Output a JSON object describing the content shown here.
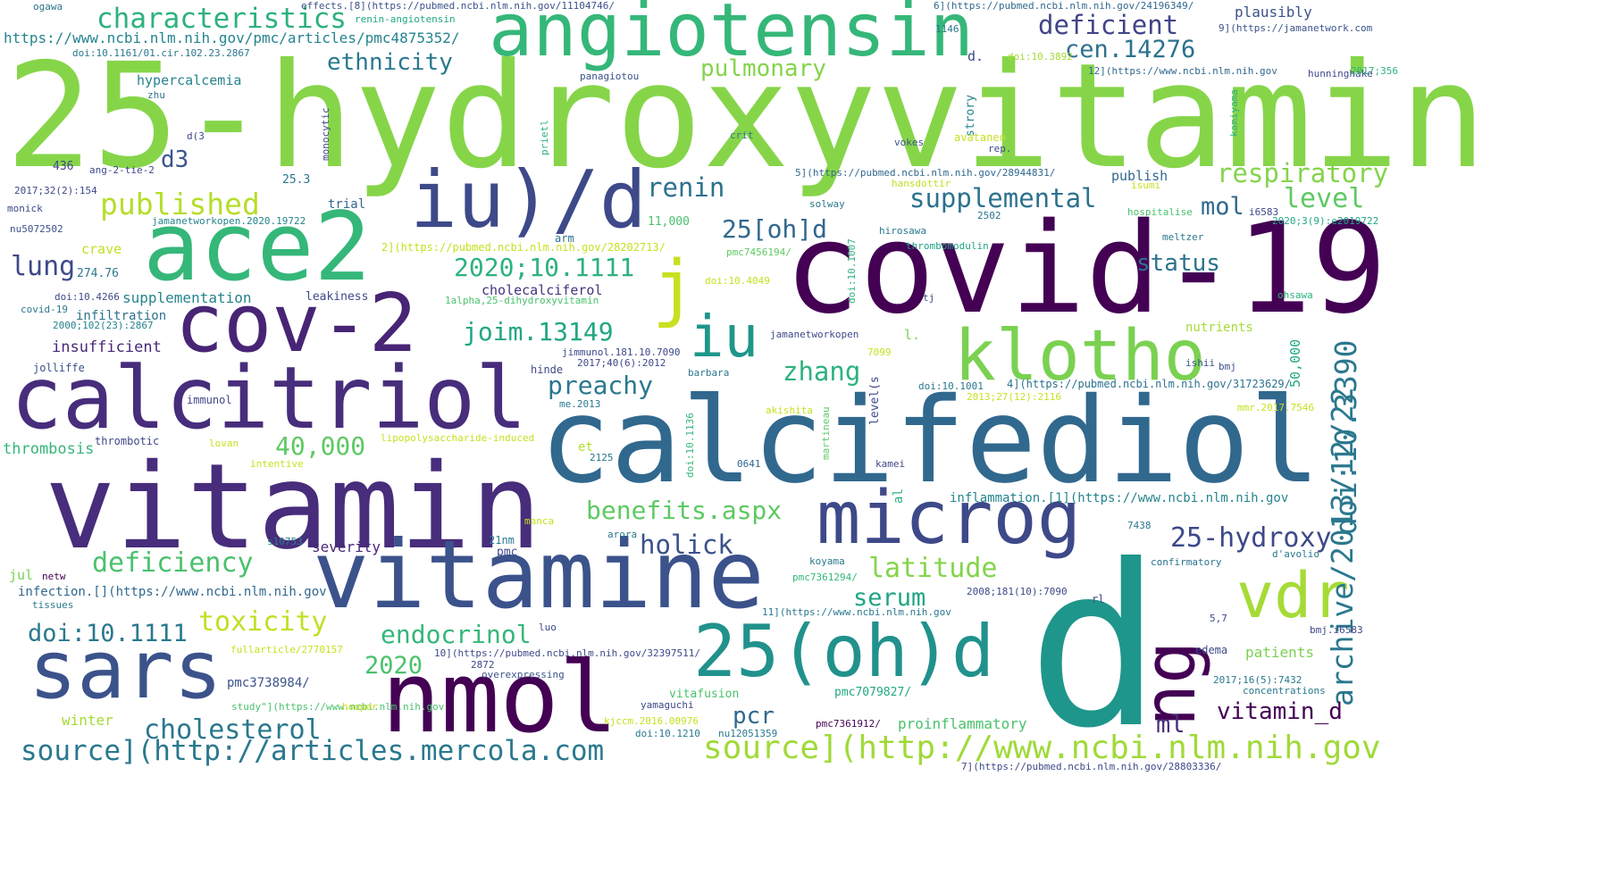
{
  "words": [
    {
      "text": "25-hydroxyvitamin",
      "color": "#86d549"
    },
    {
      "text": "d",
      "color": "#1f968b"
    },
    {
      "text": "covid-19",
      "color": "#440154"
    },
    {
      "text": "calcifediol",
      "color": "#31688e"
    },
    {
      "text": "vitamin",
      "color": "#472d7b"
    },
    {
      "text": "vitamine",
      "color": "#3b528b"
    },
    {
      "text": "angiotensin",
      "color": "#35b779"
    },
    {
      "text": "calcitriol",
      "color": "#472d7b"
    },
    {
      "text": "ace2",
      "color": "#35b779"
    },
    {
      "text": "nmol",
      "color": "#440154"
    },
    {
      "text": "sars",
      "color": "#3b528b"
    },
    {
      "text": "cov-2",
      "color": "#482475"
    },
    {
      "text": "iu)/d",
      "color": "#3e4989"
    },
    {
      "text": "microg",
      "color": "#3e4989"
    },
    {
      "text": "25(oh)d",
      "color": "#21918c"
    },
    {
      "text": "klotho",
      "color": "#7ad151"
    },
    {
      "text": "ng",
      "color": "#440154"
    },
    {
      "text": "vdr",
      "color": "#a5db36"
    },
    {
      "text": "iu",
      "color": "#1f968b"
    },
    {
      "text": "j",
      "color": "#c8e020"
    },
    {
      "text": "source](http://www.ncbi.nlm.nih.gov",
      "color": "#a0da39"
    },
    {
      "text": "source](http://articles.mercola.com",
      "color": "#2a788e"
    },
    {
      "text": "archive/2013/12/22",
      "color": "#2a788e"
    },
    {
      "text": "doi:10.3390",
      "color": "#2a788e"
    },
    {
      "text": "characteristics",
      "color": "#2db27d"
    },
    {
      "text": "https://www.ncbi.nlm.nih.gov/pmc/articles/pmc4875352/",
      "color": "#25848e"
    },
    {
      "text": "doi:10.1161/01.cir.102.23.2867",
      "color": "#2a788e"
    },
    {
      "text": "deficient",
      "color": "#414487"
    },
    {
      "text": "cen.14276",
      "color": "#2c728e"
    },
    {
      "text": "ethnicity",
      "color": "#2a788e"
    },
    {
      "text": "pulmonary",
      "color": "#84d44b"
    },
    {
      "text": "respiratory",
      "color": "#84d44b"
    },
    {
      "text": "published",
      "color": "#b5de2b"
    },
    {
      "text": "renin",
      "color": "#2c728e"
    },
    {
      "text": "supplemental",
      "color": "#2c728e"
    },
    {
      "text": "level",
      "color": "#5ec962"
    },
    {
      "text": "mol",
      "color": "#31688e"
    },
    {
      "text": "25[oh]d",
      "color": "#31688e"
    },
    {
      "text": "d3",
      "color": "#39568c"
    },
    {
      "text": "lung",
      "color": "#3e4989"
    },
    {
      "text": "2020;10.1111",
      "color": "#2db27d"
    },
    {
      "text": "status",
      "color": "#2c728e"
    },
    {
      "text": "joim.13149",
      "color": "#21a685"
    },
    {
      "text": "zhang",
      "color": "#2db27d"
    },
    {
      "text": "preachy",
      "color": "#2a788e"
    },
    {
      "text": "40,000",
      "color": "#5ec962"
    },
    {
      "text": "benefits.aspx",
      "color": "#5ec962"
    },
    {
      "text": "deficiency",
      "color": "#4ac16d"
    },
    {
      "text": "holick",
      "color": "#3b528b"
    },
    {
      "text": "25-hydroxy",
      "color": "#3e4989"
    },
    {
      "text": "latitude",
      "color": "#84d44b"
    },
    {
      "text": "serum",
      "color": "#20a486"
    },
    {
      "text": "toxicity",
      "color": "#c2df23"
    },
    {
      "text": "doi:10.1111",
      "color": "#2a788e"
    },
    {
      "text": "endocrinol",
      "color": "#35b779"
    },
    {
      "text": "2020",
      "color": "#4ac16d"
    },
    {
      "text": "cholesterol",
      "color": "#2a788e"
    },
    {
      "text": "pcr",
      "color": "#31688e"
    },
    {
      "text": "vitamin_d",
      "color": "#440154"
    },
    {
      "text": "ml",
      "color": "#472d7b"
    },
    {
      "text": "hypercalcemia",
      "color": "#25848e"
    },
    {
      "text": "supplementation",
      "color": "#25848e"
    },
    {
      "text": "insufficient",
      "color": "#482878"
    },
    {
      "text": "thrombosis",
      "color": "#35b779"
    },
    {
      "text": "infiltration",
      "color": "#2c728e"
    },
    {
      "text": "cholecalciferol",
      "color": "#46337e"
    },
    {
      "text": "plausibly",
      "color": "#3b528b"
    },
    {
      "text": "publish",
      "color": "#31688e"
    },
    {
      "text": "nutrients",
      "color": "#a5db36"
    },
    {
      "text": "patients",
      "color": "#7ad151"
    },
    {
      "text": "proinflammatory",
      "color": "#4ac16d"
    },
    {
      "text": "severity",
      "color": "#482878"
    },
    {
      "text": "winter",
      "color": "#a5db36"
    },
    {
      "text": "crave",
      "color": "#c2df23"
    },
    {
      "text": "trial",
      "color": "#31688e"
    },
    {
      "text": "25.3",
      "color": "#2a788e"
    },
    {
      "text": "436",
      "color": "#3e4989"
    },
    {
      "text": "ogawa",
      "color": "#2c728e"
    },
    {
      "text": "effects.[8](https://pubmed.ncbi.nlm.nih.gov/11104746/",
      "color": "#3b528b"
    },
    {
      "text": "renin‐angiotensin",
      "color": "#22a884"
    },
    {
      "text": "6](https://pubmed.ncbi.nlm.nih.gov/24196349/",
      "color": "#31688e"
    },
    {
      "text": "9](https://jamanetwork.com",
      "color": "#3b528b"
    },
    {
      "text": "1146",
      "color": "#2a788e"
    },
    {
      "text": "d.",
      "color": "#3e4989"
    },
    {
      "text": "doi:10.3892",
      "color": "#a5db36"
    },
    {
      "text": "12](https://www.ncbi.nlm.nih.gov",
      "color": "#31688e"
    },
    {
      "text": "hunninghake",
      "color": "#3e4989"
    },
    {
      "text": "2017;356",
      "color": "#2db27d"
    },
    {
      "text": "2020;12(5):1359",
      "color": "#a5db36"
    },
    {
      "text": "panagiotou",
      "color": "#3b528b"
    },
    {
      "text": "zhu",
      "color": "#2c728e"
    },
    {
      "text": "monocytic",
      "color": "#3e4989"
    },
    {
      "text": "prietl",
      "color": "#2db27d"
    },
    {
      "text": "strory",
      "color": "#25848e"
    },
    {
      "text": "kamiyama",
      "color": "#2db27d"
    },
    {
      "text": "d(3",
      "color": "#3e4989"
    },
    {
      "text": "crit",
      "color": "#2c728e"
    },
    {
      "text": "vokes",
      "color": "#3b528b"
    },
    {
      "text": "avataneo",
      "color": "#c8e020"
    },
    {
      "text": "rep.",
      "color": "#3e4989"
    },
    {
      "text": "ang-2-tie-2",
      "color": "#3e4989"
    },
    {
      "text": "5](https://pubmed.ncbi.nlm.nih.gov/28944831/",
      "color": "#31688e"
    },
    {
      "text": "hansdottir",
      "color": "#c2df23"
    },
    {
      "text": "isumi",
      "color": "#c8e020"
    },
    {
      "text": "2017;32(2):154",
      "color": "#3e4989"
    },
    {
      "text": "monick",
      "color": "#3e4989"
    },
    {
      "text": "jamanetworkopen.2020.19722",
      "color": "#25848e"
    },
    {
      "text": "solway",
      "color": "#2a788e"
    },
    {
      "text": "11,000",
      "color": "#4ac16d"
    },
    {
      "text": "2502",
      "color": "#2c728e"
    },
    {
      "text": "hospitalise",
      "color": "#4ac16d"
    },
    {
      "text": "i6583",
      "color": "#3e4989"
    },
    {
      "text": "2020;3(9):e2019722",
      "color": "#22a884"
    },
    {
      "text": "nu5072502",
      "color": "#3b528b"
    },
    {
      "text": "arm",
      "color": "#2c728e"
    },
    {
      "text": "2](https://pubmed.ncbi.nlm.nih.gov/28202713/",
      "color": "#c8e020"
    },
    {
      "text": "hirosawa",
      "color": "#2a788e"
    },
    {
      "text": "thrombomodulin",
      "color": "#20a486"
    },
    {
      "text": "meltzer",
      "color": "#2a788e"
    },
    {
      "text": "274.76",
      "color": "#2a788e"
    },
    {
      "text": "pmc7456194/",
      "color": "#5ec962"
    },
    {
      "text": "doi:10.4049",
      "color": "#c8e020"
    },
    {
      "text": "doi:10.1007",
      "color": "#2db27d"
    },
    {
      "text": "tj",
      "color": "#3e4989"
    },
    {
      "text": "ohsawa",
      "color": "#2db27d"
    },
    {
      "text": "doi:10.4266",
      "color": "#3e4989"
    },
    {
      "text": "leakiness",
      "color": "#3e4989"
    },
    {
      "text": "1alpha,25-dihydroxyvitamin",
      "color": "#4ac16d"
    },
    {
      "text": "covid‐19",
      "color": "#2a788e"
    },
    {
      "text": "2000;102(23):2867",
      "color": "#25848e"
    },
    {
      "text": "jamanetworkopen",
      "color": "#3e4989"
    },
    {
      "text": "l.",
      "color": "#7ad151"
    },
    {
      "text": "jolliffe",
      "color": "#3b528b"
    },
    {
      "text": "jimmunol.181.10.7090",
      "color": "#3e4989"
    },
    {
      "text": "2017;40(6):2012",
      "color": "#3e4989"
    },
    {
      "text": "7099",
      "color": "#c8e020"
    },
    {
      "text": "50,000",
      "color": "#22a884"
    },
    {
      "text": "ishii",
      "color": "#3b528b"
    },
    {
      "text": "bmj",
      "color": "#3b528b"
    },
    {
      "text": "hinde",
      "color": "#3e4989"
    },
    {
      "text": "barbara",
      "color": "#2a788e"
    },
    {
      "text": "doi:10.1001",
      "color": "#2a788e"
    },
    {
      "text": "4](https://pubmed.ncbi.nlm.nih.gov/31723629/",
      "color": "#2c728e"
    },
    {
      "text": "immunol",
      "color": "#3e4989"
    },
    {
      "text": "level(s",
      "color": "#3e4989"
    },
    {
      "text": "2013;27(12):2116",
      "color": "#c8e020"
    },
    {
      "text": "me.2013",
      "color": "#2a788e"
    },
    {
      "text": "akishita",
      "color": "#c8e020"
    },
    {
      "text": "martineau",
      "color": "#5ec962"
    },
    {
      "text": "mmr.2017.7546",
      "color": "#c8e020"
    },
    {
      "text": "thrombotic",
      "color": "#3e4989"
    },
    {
      "text": "lovan",
      "color": "#c8e020"
    },
    {
      "text": "lipopolysaccharide‐induced",
      "color": "#c8e020"
    },
    {
      "text": "et",
      "color": "#b5de2b"
    },
    {
      "text": "doi:10.1136",
      "color": "#35b779"
    },
    {
      "text": "intentive",
      "color": "#c8e020"
    },
    {
      "text": "2125",
      "color": "#2a788e"
    },
    {
      "text": "0641",
      "color": "#31688e"
    },
    {
      "text": "kamei",
      "color": "#3e4989"
    },
    {
      "text": "al",
      "color": "#2db27d"
    },
    {
      "text": "inflammation.[1](https://www.ncbi.nlm.nih.gov",
      "color": "#25848e"
    },
    {
      "text": "manca",
      "color": "#c8e020"
    },
    {
      "text": "7438",
      "color": "#2a788e"
    },
    {
      "text": "arora",
      "color": "#2a788e"
    },
    {
      "text": "s10753",
      "color": "#2a788e"
    },
    {
      "text": "21nm",
      "color": "#2a788e"
    },
    {
      "text": "d'avolio",
      "color": "#2a788e"
    },
    {
      "text": "confirmatory",
      "color": "#2c728e"
    },
    {
      "text": "koyama",
      "color": "#2a788e"
    },
    {
      "text": "jul",
      "color": "#7ad151"
    },
    {
      "text": "netw",
      "color": "#440154"
    },
    {
      "text": "pmc",
      "color": "#3e4989"
    },
    {
      "text": "infection.[](https://www.ncbi.nlm.nih.gov",
      "color": "#31688e"
    },
    {
      "text": "pmc7361294/",
      "color": "#35b779"
    },
    {
      "text": "2008;181(10):7090",
      "color": "#3e4989"
    },
    {
      "text": "rl",
      "color": "#3e4989"
    },
    {
      "text": "tissues",
      "color": "#2a788e"
    },
    {
      "text": "11](https://www.ncbi.nlm.nih.gov",
      "color": "#2a788e"
    },
    {
      "text": "5,7",
      "color": "#3e4989"
    },
    {
      "text": "luo",
      "color": "#3e4989"
    },
    {
      "text": "bmj.i6583",
      "color": "#3e4989"
    },
    {
      "text": "fullarticle/2770157",
      "color": "#c8e020"
    },
    {
      "text": "10](https://pubmed.ncbi.nlm.nih.gov/32397511/",
      "color": "#3e4989"
    },
    {
      "text": "2872",
      "color": "#3e4989"
    },
    {
      "text": "edema",
      "color": "#3e4989"
    },
    {
      "text": "pmc3738984/",
      "color": "#3b528b"
    },
    {
      "text": "overexpressing",
      "color": "#3b528b"
    },
    {
      "text": "pmc7079827/",
      "color": "#22a884"
    },
    {
      "text": "yamaguchi",
      "color": "#3e4989"
    },
    {
      "text": "2017;16(5):7432",
      "color": "#2a788e"
    },
    {
      "text": "concentrations",
      "color": "#2a788e"
    },
    {
      "text": "study\"](https://www.ncbi.nlm.nih.gov",
      "color": "#4ac16d"
    },
    {
      "text": "hooper",
      "color": "#c8e020"
    },
    {
      "text": "vitafusion",
      "color": "#4ac16d"
    },
    {
      "text": "kjccm.2016.00976",
      "color": "#c8e020"
    },
    {
      "text": "pmc7361912/",
      "color": "#440154"
    },
    {
      "text": "doi:10.1210",
      "color": "#2a788e"
    },
    {
      "text": "nu12051359",
      "color": "#2a788e"
    },
    {
      "text": "7](https://pubmed.ncbi.nlm.nih.gov/28803336/",
      "color": "#3e4989"
    }
  ]
}
